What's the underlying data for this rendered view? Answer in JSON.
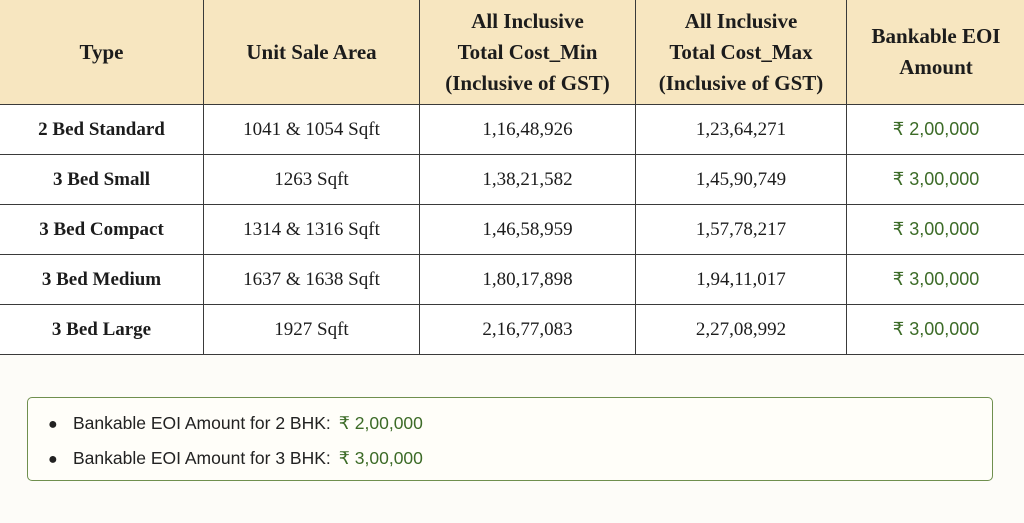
{
  "table": {
    "headers": [
      [
        "Type"
      ],
      [
        "Unit Sale Area"
      ],
      [
        "All Inclusive",
        "Total Cost_Min",
        "(Inclusive of GST)"
      ],
      [
        "All Inclusive",
        "Total Cost_Max",
        "(Inclusive of GST)"
      ],
      [
        "Bankable EOI",
        "Amount"
      ]
    ],
    "rows": [
      {
        "type": "2 Bed Standard",
        "area": "1041 & 1054 Sqft",
        "min": "1,16,48,926",
        "max": "1,23,64,271",
        "eoi": "₹ 2,00,000"
      },
      {
        "type": "3 Bed Small",
        "area": "1263 Sqft",
        "min": "1,38,21,582",
        "max": "1,45,90,749",
        "eoi": "₹ 3,00,000"
      },
      {
        "type": "3 Bed Compact",
        "area": "1314 & 1316 Sqft",
        "min": "1,46,58,959",
        "max": "1,57,78,217",
        "eoi": "₹ 3,00,000"
      },
      {
        "type": "3 Bed Medium",
        "area": "1637 & 1638 Sqft",
        "min": "1,80,17,898",
        "max": "1,94,11,017",
        "eoi": "₹ 3,00,000"
      },
      {
        "type": "3 Bed Large",
        "area": "1927 Sqft",
        "min": "2,16,77,083",
        "max": "2,27,08,992",
        "eoi": "₹ 3,00,000"
      }
    ]
  },
  "notes": [
    {
      "label": "Bankable EOI Amount for 2 BHK:",
      "amount": "₹ 2,00,000"
    },
    {
      "label": "Bankable EOI Amount for 3 BHK:",
      "amount": "₹ 3,00,000"
    }
  ],
  "colors": {
    "header_bg": "#f7e6c0",
    "amount_green": "#3c6b27",
    "note_border": "#6f8f4e"
  }
}
